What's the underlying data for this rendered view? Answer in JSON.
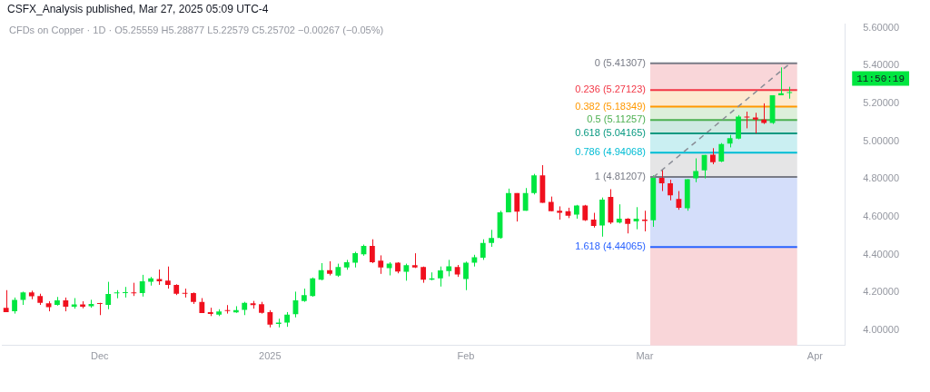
{
  "chart_data": {
    "type": "candlestick",
    "title": "CSFX_Analysis published, Mar 27, 2025 05:09 UTC-4",
    "subtitle": "CFDs on Copper · 1D · O5.25559 H5.28877 L5.22579 C5.25702 −0.00267 (−0.05%)",
    "categories": [
      null,
      null,
      null,
      null,
      null,
      null,
      null,
      null,
      null,
      null,
      null,
      "Dec",
      null,
      null,
      null,
      null,
      null,
      null,
      null,
      null,
      null,
      null,
      null,
      null,
      null,
      null,
      null,
      null,
      null,
      null,
      null,
      "2025",
      null,
      null,
      null,
      null,
      null,
      null,
      null,
      null,
      null,
      null,
      null,
      null,
      null,
      null,
      null,
      null,
      null,
      null,
      null,
      null,
      null,
      null,
      "Feb",
      null,
      null,
      null,
      null,
      null,
      null,
      null,
      null,
      null,
      null,
      null,
      null,
      null,
      null,
      null,
      null,
      null,
      null,
      null,
      null,
      "Mar",
      null,
      null,
      null,
      null,
      null,
      null,
      null,
      null,
      null,
      null,
      null,
      null,
      null,
      null,
      null,
      null,
      null,
      null,
      null,
      "Apr",
      null,
      null,
      null
    ],
    "ohlc": [
      [
        4.12,
        4.213,
        4.097,
        4.097
      ],
      [
        4.101,
        4.174,
        4.089,
        4.162
      ],
      [
        4.162,
        4.205,
        4.135,
        4.201
      ],
      [
        4.201,
        4.21,
        4.165,
        4.181
      ],
      [
        4.182,
        4.194,
        4.135,
        4.146
      ],
      [
        4.143,
        4.154,
        4.101,
        4.123
      ],
      [
        4.135,
        4.177,
        4.131,
        4.159
      ],
      [
        4.159,
        4.174,
        4.101,
        4.125
      ],
      [
        4.126,
        4.171,
        4.115,
        4.137
      ],
      [
        4.137,
        4.154,
        4.117,
        4.126
      ],
      [
        4.128,
        4.162,
        4.12,
        4.14
      ],
      [
        4.143,
        4.146,
        4.081,
        4.14
      ],
      [
        4.135,
        4.257,
        4.112,
        4.193
      ],
      [
        4.196,
        4.213,
        4.17,
        4.199
      ],
      [
        4.197,
        4.23,
        4.174,
        4.199
      ],
      [
        4.199,
        4.252,
        4.182,
        4.196
      ],
      [
        4.198,
        4.294,
        4.179,
        4.26
      ],
      [
        4.257,
        4.283,
        4.237,
        4.275
      ],
      [
        4.272,
        4.322,
        4.241,
        4.26
      ],
      [
        4.264,
        4.338,
        4.221,
        4.241
      ],
      [
        4.241,
        4.244,
        4.187,
        4.194
      ],
      [
        4.198,
        4.221,
        4.174,
        4.194
      ],
      [
        4.198,
        4.201,
        4.14,
        4.151
      ],
      [
        4.151,
        4.171,
        4.092,
        4.092
      ],
      [
        4.097,
        4.12,
        4.076,
        4.087
      ],
      [
        4.084,
        4.112,
        4.076,
        4.1
      ],
      [
        4.106,
        4.134,
        4.089,
        4.103
      ],
      [
        4.095,
        4.128,
        4.093,
        4.107
      ],
      [
        4.109,
        4.151,
        4.081,
        4.146
      ],
      [
        4.143,
        4.156,
        4.115,
        4.134
      ],
      [
        4.139,
        4.151,
        4.089,
        4.093
      ],
      [
        4.097,
        4.107,
        4.016,
        4.031
      ],
      [
        4.034,
        4.062,
        4.016,
        4.042
      ],
      [
        4.041,
        4.097,
        4.019,
        4.084
      ],
      [
        4.086,
        4.205,
        4.069,
        4.159
      ],
      [
        4.156,
        4.221,
        4.151,
        4.187
      ],
      [
        4.182,
        4.28,
        4.178,
        4.275
      ],
      [
        4.268,
        4.356,
        4.265,
        4.319
      ],
      [
        4.319,
        4.366,
        4.291,
        4.299
      ],
      [
        4.29,
        4.353,
        4.283,
        4.335
      ],
      [
        4.333,
        4.373,
        4.321,
        4.361
      ],
      [
        4.358,
        4.416,
        4.333,
        4.408
      ],
      [
        4.403,
        4.454,
        4.395,
        4.447
      ],
      [
        4.447,
        4.482,
        4.356,
        4.361
      ],
      [
        4.369,
        4.397,
        4.299,
        4.333
      ],
      [
        4.33,
        4.361,
        4.291,
        4.353
      ],
      [
        4.358,
        4.361,
        4.302,
        4.311
      ],
      [
        4.31,
        4.353,
        4.263,
        4.345
      ],
      [
        4.345,
        4.408,
        4.33,
        4.333
      ],
      [
        4.335,
        4.338,
        4.252,
        4.268
      ],
      [
        4.268,
        4.307,
        4.265,
        4.275
      ],
      [
        4.275,
        4.338,
        4.232,
        4.317
      ],
      [
        4.314,
        4.373,
        4.286,
        4.339
      ],
      [
        4.335,
        4.346,
        4.283,
        4.296
      ],
      [
        4.272,
        4.364,
        4.213,
        4.358
      ],
      [
        4.358,
        4.4,
        4.338,
        4.387
      ],
      [
        4.384,
        4.482,
        4.373,
        4.462
      ],
      [
        4.462,
        4.532,
        4.442,
        4.489
      ],
      [
        4.489,
        4.633,
        4.485,
        4.625
      ],
      [
        4.625,
        4.75,
        4.625,
        4.726
      ],
      [
        4.726,
        4.726,
        4.576,
        4.628
      ],
      [
        4.633,
        4.753,
        4.633,
        4.726
      ],
      [
        4.726,
        4.828,
        4.719,
        4.82
      ],
      [
        4.82,
        4.874,
        4.675,
        4.675
      ],
      [
        4.68,
        4.708,
        4.63,
        4.63
      ],
      [
        4.633,
        4.656,
        4.586,
        4.622
      ],
      [
        4.63,
        4.649,
        4.594,
        4.607
      ],
      [
        4.613,
        4.664,
        4.591,
        4.66
      ],
      [
        4.661,
        4.664,
        4.579,
        4.582
      ],
      [
        4.586,
        4.622,
        4.544,
        4.552
      ],
      [
        4.555,
        4.703,
        4.496,
        4.692
      ],
      [
        4.706,
        4.747,
        4.563,
        4.571
      ],
      [
        4.571,
        4.667,
        4.566,
        4.591
      ],
      [
        4.591,
        4.594,
        4.513,
        4.563
      ],
      [
        4.576,
        4.652,
        4.535,
        4.591
      ],
      [
        4.586,
        4.633,
        4.524,
        4.579
      ],
      [
        4.583,
        4.82,
        4.548,
        4.807
      ],
      [
        4.807,
        4.851,
        4.737,
        4.778
      ],
      [
        4.778,
        4.797,
        4.688,
        4.714
      ],
      [
        4.695,
        4.737,
        4.638,
        4.649
      ],
      [
        4.646,
        4.8,
        4.633,
        4.8
      ],
      [
        4.804,
        4.91,
        4.784,
        4.843
      ],
      [
        4.846,
        4.928,
        4.804,
        4.928
      ],
      [
        4.929,
        4.964,
        4.879,
        4.89
      ],
      [
        4.893,
        4.991,
        4.89,
        4.986
      ],
      [
        4.988,
        5.034,
        4.968,
        5.017
      ],
      [
        5.014,
        5.139,
        5.011,
        5.131
      ],
      [
        5.131,
        5.157,
        5.069,
        5.126
      ],
      [
        5.126,
        5.151,
        5.042,
        5.115
      ],
      [
        5.115,
        5.201,
        5.092,
        5.097
      ],
      [
        5.097,
        5.244,
        5.092,
        5.244
      ],
      [
        5.244,
        5.391,
        5.244,
        5.254
      ],
      [
        5.25559,
        5.28877,
        5.22579,
        5.25702
      ],
      null,
      null,
      null,
      null,
      null,
      null
    ],
    "colors": [
      "#f0101e",
      "#00e640",
      "#00e640",
      "#f0101e",
      "#f0101e",
      "#f0101e",
      "#00e640",
      "#f0101e",
      "#00e640",
      "#f0101e",
      "#00e640",
      "#f0101e",
      "#00e640",
      "#00e640",
      "#00e640",
      "#f0101e",
      "#00e640",
      "#00e640",
      "#f0101e",
      "#f0101e",
      "#f0101e",
      "#f0101e",
      "#f0101e",
      "#f0101e",
      "#f0101e",
      "#00e640",
      "#f0101e",
      "#00e640",
      "#00e640",
      "#f0101e",
      "#f0101e",
      "#f0101e",
      "#00e640",
      "#00e640",
      "#00e640",
      "#00e640",
      "#00e640",
      "#00e640",
      "#f0101e",
      "#00e640",
      "#00e640",
      "#00e640",
      "#00e640",
      "#f0101e",
      "#f0101e",
      "#00e640",
      "#f0101e",
      "#00e640",
      "#f0101e",
      "#f0101e",
      "#00e640",
      "#00e640",
      "#00e640",
      "#f0101e",
      "#00e640",
      "#00e640",
      "#00e640",
      "#00e640",
      "#00e640",
      "#00e640",
      "#f0101e",
      "#00e640",
      "#00e640",
      "#f0101e",
      "#f0101e",
      "#f0101e",
      "#f0101e",
      "#00e640",
      "#f0101e",
      "#f0101e",
      "#00e640",
      "#f0101e",
      "#00e640",
      "#f0101e",
      "#00e640",
      "#f0101e",
      "#00e640",
      "#f0101e",
      "#f0101e",
      "#f0101e",
      "#00e640",
      "#00e640",
      "#00e640",
      "#f0101e",
      "#00e640",
      "#00e640",
      "#00e640",
      "#f0101e",
      "#f0101e",
      "#f0101e",
      "#00e640",
      "#00e640",
      "#00e640",
      null,
      null,
      null,
      null,
      null,
      null
    ],
    "series": [
      {
        "type": "line",
        "color": "#8a8d96",
        "line_style": "dashed",
        "values": [
          null,
          null,
          null,
          null,
          null,
          null,
          null,
          null,
          null,
          null,
          null,
          null,
          null,
          null,
          null,
          null,
          null,
          null,
          null,
          null,
          null,
          null,
          null,
          null,
          null,
          null,
          null,
          null,
          null,
          null,
          null,
          null,
          null,
          null,
          null,
          null,
          null,
          null,
          null,
          null,
          null,
          null,
          null,
          null,
          null,
          null,
          null,
          null,
          null,
          null,
          null,
          null,
          null,
          null,
          null,
          null,
          null,
          null,
          null,
          null,
          null,
          null,
          null,
          null,
          null,
          null,
          null,
          null,
          null,
          null,
          null,
          null,
          null,
          null,
          null,
          null,
          4.81,
          null,
          null,
          null,
          null,
          null,
          null,
          null,
          null,
          null,
          null,
          null,
          null,
          null,
          null,
          null,
          5.41,
          null,
          null,
          null,
          null,
          null,
          null
        ]
      }
    ],
    "ref_lines": [
      {
        "axis": "y",
        "value": 5.41307,
        "label": "0 (5.41307)",
        "color": "#787b86"
      },
      {
        "axis": "y",
        "value": 5.27123,
        "label": "0.236 (5.27123)",
        "color": "#f23645"
      },
      {
        "axis": "y",
        "value": 5.18349,
        "label": "0.382 (5.18349)",
        "color": "#ff9800"
      },
      {
        "axis": "y",
        "value": 5.11257,
        "label": "0.5 (5.11257)",
        "color": "#4caf50"
      },
      {
        "axis": "y",
        "value": 5.04165,
        "label": "0.618 (5.04165)",
        "color": "#089981"
      },
      {
        "axis": "y",
        "value": 4.94068,
        "label": "0.786 (4.94068)",
        "color": "#00bcd4"
      },
      {
        "axis": "y",
        "value": 4.81207,
        "label": "1 (4.81207)",
        "color": "#787b86"
      },
      {
        "axis": "y",
        "value": 4.44065,
        "label": "1.618 (4.44065)",
        "color": "#2962ff"
      }
    ],
    "bands": [
      {
        "axis": "y",
        "from": 5.27123,
        "to": 5.41307,
        "color": "#f9d6d9"
      },
      {
        "axis": "y",
        "from": 5.18349,
        "to": 5.27123,
        "color": "#fde9cf"
      },
      {
        "axis": "y",
        "from": 5.11257,
        "to": 5.18349,
        "color": "#ddefda"
      },
      {
        "axis": "y",
        "from": 5.04165,
        "to": 5.11257,
        "color": "#cee9e2"
      },
      {
        "axis": "y",
        "from": 4.94068,
        "to": 5.04165,
        "color": "#caeff2"
      },
      {
        "axis": "y",
        "from": 4.81207,
        "to": 4.94068,
        "color": "#e5e5e6"
      },
      {
        "axis": "y",
        "from": 4.44065,
        "to": 4.81207,
        "color": "#d4defa"
      },
      {
        "axis": "y",
        "from": 3.92,
        "to": 4.44065,
        "color": "#f9d6d9"
      }
    ],
    "annotations": [
      "11:50:19"
    ],
    "ylim": [
      3.92,
      5.62
    ],
    "yticks": [
      {
        "value": 4,
        "label": "4.00000"
      },
      {
        "value": 4.2,
        "label": "4.20000"
      },
      {
        "value": 4.4,
        "label": "4.40000"
      },
      {
        "value": 4.6,
        "label": "4.60000"
      },
      {
        "value": 4.8,
        "label": "4.80000"
      },
      {
        "value": 5,
        "label": "5.00000"
      },
      {
        "value": 5.2,
        "label": "5.20000"
      },
      {
        "value": 5.4,
        "label": "5.40000"
      },
      {
        "value": 5.6,
        "label": "5.60000"
      }
    ],
    "legend": false
  }
}
